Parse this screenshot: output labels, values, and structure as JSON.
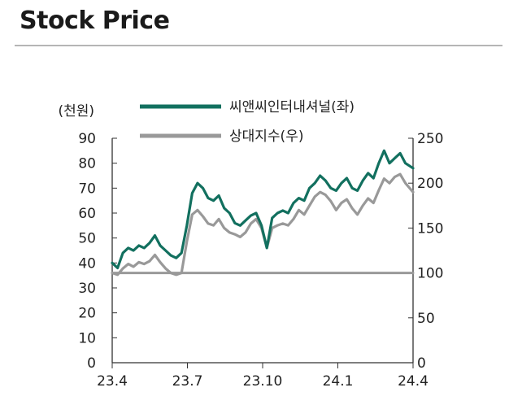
{
  "title": "Stock Price",
  "chart_data": {
    "type": "line",
    "y_left_unit": "(천원)",
    "y_left_ticks": [
      "90",
      "80",
      "70",
      "60",
      "50",
      "40",
      "30",
      "20",
      "10",
      "0"
    ],
    "y_right_ticks": [
      "250",
      "200",
      "150",
      "100",
      "50",
      "0"
    ],
    "y_left_range": [
      0,
      90
    ],
    "y_right_range": [
      0,
      250
    ],
    "x_ticks": [
      "23.4",
      "23.7",
      "23.10",
      "24.1",
      "24.4"
    ],
    "x_range": [
      "2023-04-01",
      "2024-04-30"
    ],
    "grid": false,
    "legend_position": "top-center",
    "series": [
      {
        "name": "씨앤씨인터내셔널(좌)",
        "axis": "left",
        "color": "#12705f",
        "points": [
          [
            "2023-04-01",
            40
          ],
          [
            "2023-04-08",
            38
          ],
          [
            "2023-04-15",
            44
          ],
          [
            "2023-04-22",
            46
          ],
          [
            "2023-04-29",
            45
          ],
          [
            "2023-05-06",
            47
          ],
          [
            "2023-05-13",
            46
          ],
          [
            "2023-05-20",
            48
          ],
          [
            "2023-05-27",
            51
          ],
          [
            "2023-06-03",
            47
          ],
          [
            "2023-06-10",
            45
          ],
          [
            "2023-06-17",
            43
          ],
          [
            "2023-06-24",
            42
          ],
          [
            "2023-07-01",
            44
          ],
          [
            "2023-07-08",
            55
          ],
          [
            "2023-07-15",
            68
          ],
          [
            "2023-07-22",
            72
          ],
          [
            "2023-07-29",
            70
          ],
          [
            "2023-08-05",
            66
          ],
          [
            "2023-08-12",
            65
          ],
          [
            "2023-08-19",
            67
          ],
          [
            "2023-08-26",
            62
          ],
          [
            "2023-09-02",
            60
          ],
          [
            "2023-09-09",
            56
          ],
          [
            "2023-09-16",
            55
          ],
          [
            "2023-09-23",
            57
          ],
          [
            "2023-09-30",
            59
          ],
          [
            "2023-10-07",
            60
          ],
          [
            "2023-10-14",
            55
          ],
          [
            "2023-10-21",
            46
          ],
          [
            "2023-10-28",
            58
          ],
          [
            "2023-11-04",
            60
          ],
          [
            "2023-11-11",
            61
          ],
          [
            "2023-11-18",
            60
          ],
          [
            "2023-11-25",
            64
          ],
          [
            "2023-12-02",
            66
          ],
          [
            "2023-12-09",
            65
          ],
          [
            "2023-12-16",
            70
          ],
          [
            "2023-12-23",
            72
          ],
          [
            "2023-12-30",
            75
          ],
          [
            "2024-01-06",
            73
          ],
          [
            "2024-01-13",
            70
          ],
          [
            "2024-01-20",
            69
          ],
          [
            "2024-01-27",
            72
          ],
          [
            "2024-02-03",
            74
          ],
          [
            "2024-02-10",
            70
          ],
          [
            "2024-02-17",
            69
          ],
          [
            "2024-02-24",
            73
          ],
          [
            "2024-03-02",
            76
          ],
          [
            "2024-03-09",
            74
          ],
          [
            "2024-03-16",
            80
          ],
          [
            "2024-03-23",
            85
          ],
          [
            "2024-03-30",
            80
          ],
          [
            "2024-04-06",
            82
          ],
          [
            "2024-04-13",
            84
          ],
          [
            "2024-04-20",
            80
          ],
          [
            "2024-04-30",
            78
          ]
        ]
      },
      {
        "name": "상대지수(우)",
        "axis": "right",
        "color": "#999999",
        "points": [
          [
            "2023-04-01",
            100
          ],
          [
            "2023-04-08",
            98
          ],
          [
            "2023-04-15",
            105
          ],
          [
            "2023-04-22",
            110
          ],
          [
            "2023-04-29",
            107
          ],
          [
            "2023-05-06",
            112
          ],
          [
            "2023-05-13",
            110
          ],
          [
            "2023-05-20",
            113
          ],
          [
            "2023-05-27",
            120
          ],
          [
            "2023-06-03",
            112
          ],
          [
            "2023-06-10",
            105
          ],
          [
            "2023-06-17",
            100
          ],
          [
            "2023-06-24",
            98
          ],
          [
            "2023-07-01",
            100
          ],
          [
            "2023-07-08",
            135
          ],
          [
            "2023-07-15",
            165
          ],
          [
            "2023-07-22",
            170
          ],
          [
            "2023-07-29",
            163
          ],
          [
            "2023-08-05",
            155
          ],
          [
            "2023-08-12",
            153
          ],
          [
            "2023-08-19",
            160
          ],
          [
            "2023-08-26",
            150
          ],
          [
            "2023-09-02",
            145
          ],
          [
            "2023-09-09",
            143
          ],
          [
            "2023-09-16",
            140
          ],
          [
            "2023-09-23",
            145
          ],
          [
            "2023-09-30",
            155
          ],
          [
            "2023-10-07",
            160
          ],
          [
            "2023-10-14",
            150
          ],
          [
            "2023-10-21",
            128
          ],
          [
            "2023-10-28",
            150
          ],
          [
            "2023-11-04",
            153
          ],
          [
            "2023-11-11",
            155
          ],
          [
            "2023-11-18",
            153
          ],
          [
            "2023-11-25",
            160
          ],
          [
            "2023-12-02",
            170
          ],
          [
            "2023-12-09",
            165
          ],
          [
            "2023-12-16",
            175
          ],
          [
            "2023-12-23",
            185
          ],
          [
            "2023-12-30",
            190
          ],
          [
            "2024-01-06",
            187
          ],
          [
            "2024-01-13",
            180
          ],
          [
            "2024-01-20",
            170
          ],
          [
            "2024-01-27",
            178
          ],
          [
            "2024-02-03",
            182
          ],
          [
            "2024-02-10",
            172
          ],
          [
            "2024-02-17",
            165
          ],
          [
            "2024-02-24",
            175
          ],
          [
            "2024-03-02",
            183
          ],
          [
            "2024-03-09",
            178
          ],
          [
            "2024-03-16",
            192
          ],
          [
            "2024-03-23",
            205
          ],
          [
            "2024-03-30",
            200
          ],
          [
            "2024-04-06",
            207
          ],
          [
            "2024-04-13",
            210
          ],
          [
            "2024-04-20",
            200
          ],
          [
            "2024-04-30",
            190
          ]
        ]
      },
      {
        "name": "",
        "axis": "right",
        "color": "#999999",
        "points": [
          [
            "2023-04-01",
            100
          ],
          [
            "2024-04-30",
            100
          ]
        ]
      }
    ]
  }
}
